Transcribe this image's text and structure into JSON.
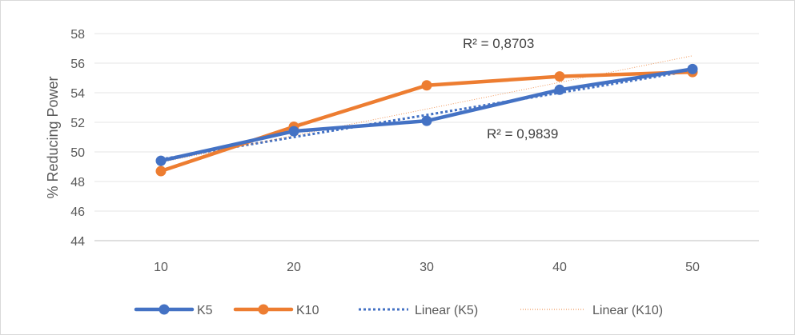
{
  "chart_data": {
    "type": "line",
    "x": [
      10,
      20,
      30,
      40,
      50
    ],
    "ylabel": "% Reducing Power",
    "xlabel": "",
    "ylim": [
      44,
      58
    ],
    "yticks": [
      44,
      46,
      48,
      50,
      52,
      54,
      56,
      58
    ],
    "grid": true,
    "legend_position": "bottom",
    "series": [
      {
        "name": "K5",
        "values": [
          49.4,
          51.4,
          52.1,
          54.2,
          55.6
        ],
        "color": "#4472C4"
      },
      {
        "name": "K10",
        "values": [
          48.7,
          51.7,
          54.5,
          55.1,
          55.4
        ],
        "color": "#ED7D31"
      }
    ],
    "trendlines": [
      {
        "name": "Linear (K5)",
        "start": 49.5,
        "end": 55.5,
        "color": "#4472C4",
        "style": "dotted"
      },
      {
        "name": "Linear (K10)",
        "start": 49.3,
        "end": 56.5,
        "color": "#ED7D31",
        "style": "thin-dotted"
      }
    ],
    "annotations": [
      {
        "text": "R² = 0,8703",
        "applies_to": "Linear (K10)"
      },
      {
        "text": "R² = 0,9839",
        "applies_to": "Linear (K5)"
      }
    ]
  }
}
